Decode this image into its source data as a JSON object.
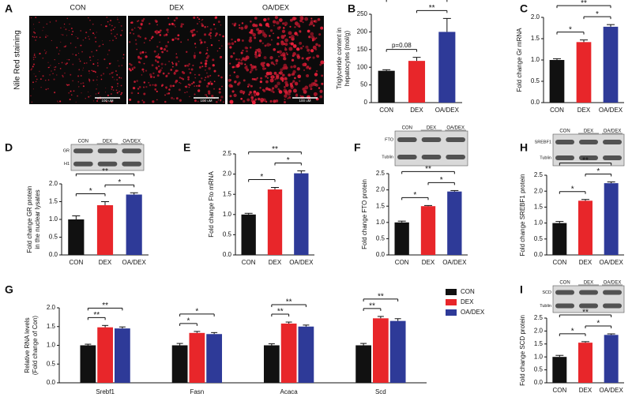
{
  "panel_a": {
    "label": "A",
    "y_label": "Nile Red staining",
    "images": [
      {
        "title": "CON",
        "scale_bar": "100 uM"
      },
      {
        "title": "DEX",
        "scale_bar": "100 uM"
      },
      {
        "title": "OA/DEX",
        "scale_bar": "100 uM"
      }
    ]
  },
  "chart_data": [
    {
      "panel": "B",
      "type": "bar",
      "y_label": [
        "Triglyceride content in",
        "hepatocytes (mol/g)"
      ],
      "categories": [
        "CON",
        "DEX",
        "OA/DEX"
      ],
      "values": [
        90,
        118,
        200
      ],
      "errors": [
        3,
        10,
        38
      ],
      "colors": [
        "#111111",
        "#e8262a",
        "#2e3a98"
      ],
      "ylim": [
        0,
        250
      ],
      "yticks": [
        0,
        50,
        100,
        150,
        200,
        250
      ],
      "annotations": [
        {
          "from": 0,
          "to": 1,
          "text": "p=0.08"
        },
        {
          "from": 1,
          "to": 2,
          "text": "**"
        },
        {
          "from": 0,
          "to": 2,
          "text": "**"
        }
      ]
    },
    {
      "panel": "C",
      "type": "bar",
      "y_label": [
        "Fold change Gr mRNA"
      ],
      "categories": [
        "CON",
        "DEX",
        "OA/DEX"
      ],
      "values": [
        1.0,
        1.42,
        1.78
      ],
      "errors": [
        0.03,
        0.05,
        0.05
      ],
      "colors": [
        "#111111",
        "#e8262a",
        "#2e3a98"
      ],
      "ylim": [
        0,
        2
      ],
      "yticks": [
        {
          "value": 0,
          "label": "0.0"
        },
        0.5,
        {
          "value": 1,
          "label": "1.0"
        },
        1.5,
        {
          "value": 2,
          "label": "2.0"
        }
      ],
      "annotations": [
        {
          "from": 0,
          "to": 1,
          "text": "*"
        },
        {
          "from": 1,
          "to": 2,
          "text": "*"
        },
        {
          "from": 0,
          "to": 2,
          "text": "**"
        }
      ]
    },
    {
      "panel": "D",
      "type": "bar",
      "y_label": [
        "Fold change GR protein",
        "in the nuclear lysates"
      ],
      "categories": [
        "CON",
        "DEX",
        "OA/DEX"
      ],
      "values": [
        1.0,
        1.4,
        1.7
      ],
      "errors": [
        0.1,
        0.1,
        0.05
      ],
      "colors": [
        "#111111",
        "#e8262a",
        "#2e3a98"
      ],
      "ylim": [
        0,
        2
      ],
      "yticks": [
        {
          "value": 0,
          "label": "0.0"
        },
        0.5,
        {
          "value": 1,
          "label": "1.0"
        },
        1.5,
        {
          "value": 2,
          "label": "2.0"
        }
      ],
      "blot": {
        "bands": [
          "GR",
          "H1"
        ],
        "lanes": [
          "CON",
          "DEX",
          "OA/DEX"
        ]
      },
      "annotations": [
        {
          "from": 0,
          "to": 1,
          "text": "*"
        },
        {
          "from": 1,
          "to": 2,
          "text": "*"
        },
        {
          "from": 0,
          "to": 2,
          "text": "**"
        }
      ]
    },
    {
      "panel": "E",
      "type": "bar",
      "y_label": [
        "Fold change Fto mRNA"
      ],
      "categories": [
        "CON",
        "DEX",
        "OA/DEX"
      ],
      "values": [
        1.0,
        1.62,
        2.02
      ],
      "errors": [
        0.03,
        0.05,
        0.06
      ],
      "colors": [
        "#111111",
        "#e8262a",
        "#2e3a98"
      ],
      "ylim": [
        0,
        2.5
      ],
      "yticks": [
        {
          "value": 0,
          "label": "0.0"
        },
        0.5,
        {
          "value": 1,
          "label": "1.0"
        },
        1.5,
        {
          "value": 2,
          "label": "2.0"
        },
        2.5
      ],
      "annotations": [
        {
          "from": 0,
          "to": 1,
          "text": "*"
        },
        {
          "from": 1,
          "to": 2,
          "text": "*"
        },
        {
          "from": 0,
          "to": 2,
          "text": "**"
        }
      ]
    },
    {
      "panel": "F",
      "type": "bar",
      "y_label": [
        "Fold change FTO  protein"
      ],
      "categories": [
        "CON",
        "DEX",
        "OA/DEX"
      ],
      "values": [
        1.0,
        1.5,
        1.95
      ],
      "errors": [
        0.04,
        0.02,
        0.03
      ],
      "colors": [
        "#111111",
        "#e8262a",
        "#2e3a98"
      ],
      "ylim": [
        0,
        2.5
      ],
      "yticks": [
        {
          "value": 0,
          "label": "0.0"
        },
        0.5,
        {
          "value": 1,
          "label": "1.0"
        },
        1.5,
        {
          "value": 2,
          "label": "2.0"
        },
        2.5
      ],
      "blot": {
        "bands": [
          "FTO",
          "Tublin"
        ],
        "lanes": [
          "CON",
          "DEX",
          "OA/DEX"
        ]
      },
      "annotations": [
        {
          "from": 0,
          "to": 1,
          "text": "*"
        },
        {
          "from": 1,
          "to": 2,
          "text": "*"
        },
        {
          "from": 0,
          "to": 2,
          "text": "**"
        }
      ]
    },
    {
      "panel": "H",
      "type": "bar",
      "y_label": [
        "Fold change SREBF1  protein"
      ],
      "categories": [
        "CON",
        "DEX",
        "OA/DEX"
      ],
      "values": [
        1.0,
        1.7,
        2.25
      ],
      "errors": [
        0.05,
        0.04,
        0.04
      ],
      "colors": [
        "#111111",
        "#e8262a",
        "#2e3a98"
      ],
      "ylim": [
        0,
        2.5
      ],
      "yticks": [
        {
          "value": 0,
          "label": "0.0"
        },
        0.5,
        {
          "value": 1,
          "label": "1.0"
        },
        1.5,
        {
          "value": 2,
          "label": "2.0"
        },
        2.5
      ],
      "blot": {
        "bands": [
          "SREBF1",
          "Tublin"
        ],
        "lanes": [
          "CON",
          "DEX",
          "OA/DEX"
        ]
      },
      "annotations": [
        {
          "from": 0,
          "to": 1,
          "text": "*"
        },
        {
          "from": 1,
          "to": 2,
          "text": "*"
        },
        {
          "from": 0,
          "to": 2,
          "text": "**"
        }
      ]
    },
    {
      "panel": "G",
      "type": "grouped_bar",
      "y_label": [
        "Relative RNA levels",
        "(Fold change of Con)"
      ],
      "categories": [
        "Srebf1",
        "Fasn",
        "Acaca",
        "Scd"
      ],
      "series": [
        {
          "name": "CON",
          "color": "#111111",
          "values": [
            1.0,
            1.0,
            1.0,
            1.0
          ],
          "errors": [
            0.03,
            0.05,
            0.04,
            0.05
          ]
        },
        {
          "name": "DEX",
          "color": "#e8262a",
          "values": [
            1.48,
            1.33,
            1.58,
            1.72
          ],
          "errors": [
            0.05,
            0.04,
            0.04,
            0.05
          ]
        },
        {
          "name": "OA/DEX",
          "color": "#2e3a98",
          "values": [
            1.45,
            1.3,
            1.5,
            1.65
          ],
          "errors": [
            0.04,
            0.04,
            0.04,
            0.06
          ]
        }
      ],
      "ylim": [
        0,
        2
      ],
      "yticks": [
        {
          "value": 0,
          "label": "0.0"
        },
        0.5,
        {
          "value": 1,
          "label": "1.0"
        },
        1.5,
        {
          "value": 2,
          "label": "2.0"
        }
      ],
      "annotations": [
        {
          "category": 0,
          "from": 0,
          "to": 1,
          "text": "**"
        },
        {
          "category": 0,
          "from": 0,
          "to": 2,
          "text": "**"
        },
        {
          "category": 1,
          "from": 0,
          "to": 1,
          "text": "*"
        },
        {
          "category": 1,
          "from": 0,
          "to": 2,
          "text": "*"
        },
        {
          "category": 2,
          "from": 0,
          "to": 1,
          "text": "**"
        },
        {
          "category": 2,
          "from": 0,
          "to": 2,
          "text": "**"
        },
        {
          "category": 3,
          "from": 0,
          "to": 1,
          "text": "**"
        },
        {
          "category": 3,
          "from": 0,
          "to": 2,
          "text": "**"
        }
      ]
    },
    {
      "panel": "I",
      "type": "bar",
      "y_label": [
        "Fold change SCD  protein"
      ],
      "categories": [
        "CON",
        "DEX",
        "OA/DEX"
      ],
      "values": [
        1.0,
        1.55,
        1.85
      ],
      "errors": [
        0.06,
        0.04,
        0.04
      ],
      "colors": [
        "#111111",
        "#e8262a",
        "#2e3a98"
      ],
      "ylim": [
        0,
        2.5
      ],
      "yticks": [
        {
          "value": 0,
          "label": "0.0"
        },
        0.5,
        {
          "value": 1,
          "label": "1.0"
        },
        1.5,
        {
          "value": 2,
          "label": "2.0"
        },
        2.5
      ],
      "blot": {
        "bands": [
          "SCD",
          "Tublin"
        ],
        "lanes": [
          "CON",
          "DEX",
          "OA/DEX"
        ]
      },
      "annotations": [
        {
          "from": 0,
          "to": 1,
          "text": "*"
        },
        {
          "from": 1,
          "to": 2,
          "text": "*"
        },
        {
          "from": 0,
          "to": 2,
          "text": "**"
        }
      ]
    }
  ]
}
